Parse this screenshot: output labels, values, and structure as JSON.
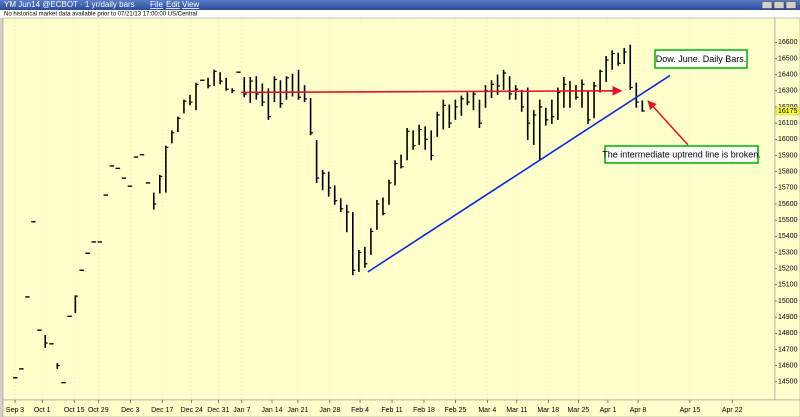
{
  "chart_data": {
    "type": "ohlc",
    "title": "YM Jun14 @ECBOT · 1 yr/daily bars",
    "menu": [
      "File",
      "Edit",
      "View"
    ],
    "subtitle": "No historical market data available prior to 07/21/13 17:00:00 US/Central",
    "color": "#000000",
    "grid": true,
    "x": [
      1,
      2,
      3,
      4,
      5,
      6,
      7,
      8,
      9,
      10,
      11,
      12,
      13,
      14,
      15,
      16,
      17,
      18,
      19,
      20,
      21,
      22,
      23,
      24,
      25,
      26,
      27,
      28,
      29,
      30,
      31,
      32,
      33,
      34,
      35,
      36,
      37,
      38,
      39,
      40,
      41,
      42,
      43,
      44,
      45,
      46,
      47,
      48,
      49,
      50,
      51,
      52,
      53,
      54,
      55,
      56,
      57,
      58,
      59,
      60,
      61,
      62,
      63,
      64,
      65,
      66,
      67,
      68,
      69,
      70,
      71,
      72,
      73,
      74,
      75,
      76,
      77,
      78,
      79,
      80,
      81,
      82,
      83,
      84,
      85,
      86,
      87,
      88,
      89,
      90,
      91,
      92,
      93,
      94,
      95,
      96,
      97,
      98,
      99,
      100,
      101,
      102,
      103,
      104,
      105
    ],
    "high": [
      14525,
      14580,
      15025,
      15490,
      14820,
      14790,
      14735,
      14615,
      14495,
      14905,
      15035,
      15190,
      15295,
      15365,
      15365,
      15655,
      15835,
      15820,
      15760,
      15710,
      15890,
      15905,
      15730,
      15670,
      15780,
      15960,
      16055,
      16140,
      16245,
      16275,
      16350,
      16365,
      16380,
      16430,
      16415,
      16380,
      16315,
      16415,
      16385,
      16385,
      16390,
      16345,
      16315,
      16390,
      16365,
      16390,
      16405,
      16430,
      16335,
      16255,
      15995,
      15810,
      15800,
      15715,
      15635,
      15595,
      15550,
      15315,
      15335,
      15450,
      15625,
      15640,
      15750,
      15870,
      15905,
      16070,
      16055,
      16090,
      16080,
      16055,
      16170,
      16245,
      16215,
      16245,
      16270,
      16290,
      16295,
      16245,
      16335,
      16365,
      16400,
      16430,
      16390,
      16335,
      16305,
      16320,
      16180,
      16245,
      16195,
      16245,
      16320,
      16385,
      16360,
      16335,
      16370,
      16295,
      16355,
      16430,
      16515,
      16550,
      16535,
      16565,
      16585,
      16350,
      16240
    ],
    "low": [
      14525,
      14580,
      15025,
      15490,
      14820,
      14710,
      14735,
      14580,
      14495,
      14905,
      14925,
      15190,
      15295,
      15365,
      15365,
      15655,
      15835,
      15820,
      15760,
      15710,
      15890,
      15905,
      15730,
      15565,
      15665,
      15670,
      15975,
      16045,
      16160,
      16210,
      16180,
      16365,
      16315,
      16330,
      16340,
      16300,
      16285,
      16415,
      16260,
      16225,
      16245,
      16205,
      16120,
      16230,
      16195,
      16245,
      16265,
      16245,
      16230,
      16025,
      15730,
      15685,
      15645,
      15595,
      15550,
      15425,
      15160,
      15180,
      15205,
      15285,
      15440,
      15530,
      15595,
      15715,
      15820,
      15870,
      15935,
      15965,
      15935,
      15870,
      16015,
      16060,
      16070,
      16120,
      16145,
      16210,
      16180,
      16070,
      16195,
      16255,
      16275,
      16305,
      16245,
      16245,
      16170,
      15995,
      15965,
      15870,
      16085,
      16095,
      16120,
      16195,
      16195,
      16245,
      16195,
      16095,
      16130,
      16290,
      16355,
      16430,
      16455,
      16465,
      16305,
      16195,
      16170
    ],
    "close": [
      14525,
      14580,
      15025,
      15490,
      14820,
      14740,
      14735,
      14600,
      14495,
      14905,
      15030,
      15190,
      15295,
      15365,
      15365,
      15655,
      15835,
      15820,
      15760,
      15710,
      15890,
      15905,
      15730,
      15600,
      15770,
      15950,
      16040,
      16130,
      16235,
      16230,
      16340,
      16365,
      16330,
      16420,
      16360,
      16310,
      16300,
      16415,
      16280,
      16360,
      16280,
      16230,
      16140,
      16370,
      16220,
      16380,
      16290,
      16260,
      16250,
      16040,
      15760,
      15790,
      15700,
      15620,
      15570,
      15550,
      15190,
      15300,
      15230,
      15430,
      15600,
      15540,
      15730,
      15850,
      15830,
      16050,
      15960,
      16060,
      16000,
      15900,
      16150,
      16210,
      16100,
      16200,
      16250,
      16230,
      16280,
      16100,
      16300,
      16340,
      16330,
      16410,
      16280,
      16310,
      16200,
      16100,
      16150,
      16200,
      16120,
      16140,
      16290,
      16340,
      16300,
      16260,
      16340,
      16120,
      16330,
      16420,
      16490,
      16530,
      16470,
      16540,
      16320,
      16230,
      16175
    ],
    "xlim": [
      -1,
      127
    ],
    "ylim": [
      14400,
      16750
    ],
    "xticks": [
      {
        "value": 1,
        "label": "Sep 3"
      },
      {
        "value": 5.5,
        "label": "Oct 1"
      },
      {
        "value": 10.8,
        "label": "Oct 15"
      },
      {
        "value": 14.8,
        "label": "Oct 29"
      },
      {
        "value": 20.1,
        "label": "Dec 3"
      },
      {
        "value": 25.4,
        "label": "Dec 17"
      },
      {
        "value": 30.3,
        "label": "Dec 24"
      },
      {
        "value": 34.7,
        "label": "Dec 31"
      },
      {
        "value": 38.6,
        "label": "Jan 7"
      },
      {
        "value": 43.6,
        "label": "Jan 14"
      },
      {
        "value": 47.9,
        "label": "Jan 21"
      },
      {
        "value": 53.2,
        "label": "Jan 28"
      },
      {
        "value": 58.2,
        "label": "Feb 4"
      },
      {
        "value": 63.5,
        "label": "Feb 11"
      },
      {
        "value": 68.8,
        "label": "Feb 18"
      },
      {
        "value": 74,
        "label": "Feb 25"
      },
      {
        "value": 79.3,
        "label": "Mar 4"
      },
      {
        "value": 84.2,
        "label": "Mar 11"
      },
      {
        "value": 89.4,
        "label": "Mar 18"
      },
      {
        "value": 94.4,
        "label": "Mar 25"
      },
      {
        "value": 99.3,
        "label": "Apr 1"
      },
      {
        "value": 104.3,
        "label": "Apr 8"
      },
      {
        "value": 112.9,
        "label": "Apr 15"
      },
      {
        "value": 119.9,
        "label": "Apr 22"
      }
    ],
    "yticks": [
      14500,
      14600,
      14700,
      14800,
      14900,
      15000,
      15100,
      15200,
      15300,
      15400,
      15500,
      15600,
      15700,
      15800,
      15900,
      16000,
      16100,
      16200,
      16300,
      16400,
      16500,
      16600
    ],
    "lines": [
      {
        "color": "#e8102a",
        "x": [
          38.5,
          101.5
        ],
        "y": [
          16290,
          16300
        ],
        "arrow": true
      },
      {
        "color": "#0a28e0",
        "x": [
          59.5,
          109.6
        ],
        "y": [
          15180,
          16395
        ],
        "arrow": false
      }
    ],
    "annotations": [
      {
        "text": "Dow. June. Daily Bars.",
        "border": "#00b000"
      },
      {
        "text": "The intermediate uptrend line is broken.",
        "border": "#00b000"
      }
    ]
  }
}
